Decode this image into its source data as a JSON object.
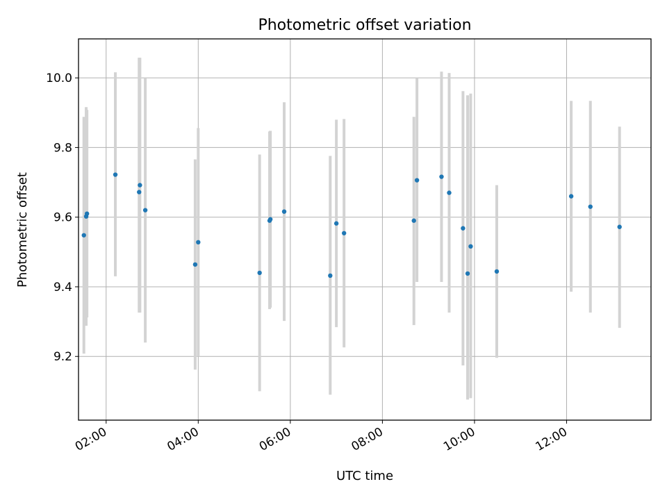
{
  "chart_data": {
    "type": "scatter",
    "title": "Photometric offset variation",
    "xlabel": "UTC time",
    "ylabel": "Photometric offset",
    "xlim": [
      "01:24",
      "13:50"
    ],
    "ylim": [
      9.017,
      10.112
    ],
    "x_ticks": [
      "02:00",
      "04:00",
      "06:00",
      "08:00",
      "10:00",
      "12:00"
    ],
    "y_ticks": [
      9.2,
      9.4,
      9.6,
      9.8,
      10.0
    ],
    "y_tick_labels": [
      "9.2",
      "9.4",
      "9.6",
      "9.8",
      "10.0"
    ],
    "grid": true,
    "colors": {
      "points": "#1f77b4",
      "error_bars": "#d3d3d3",
      "grid": "#b0b0b0"
    },
    "series": [
      {
        "points": [
          {
            "x": "01:31",
            "y": 9.548,
            "err_low": 9.208,
            "err_high": 9.888
          },
          {
            "x": "01:34",
            "y": 9.602,
            "err_low": 9.288,
            "err_high": 9.916
          },
          {
            "x": "01:35",
            "y": 9.61,
            "err_low": 9.312,
            "err_high": 9.908
          },
          {
            "x": "02:12",
            "y": 9.722,
            "err_low": 9.43,
            "err_high": 10.016
          },
          {
            "x": "02:43",
            "y": 9.672,
            "err_low": 9.326,
            "err_high": 10.058
          },
          {
            "x": "02:44",
            "y": 9.692,
            "err_low": 9.326,
            "err_high": 10.058
          },
          {
            "x": "02:51",
            "y": 9.62,
            "err_low": 9.24,
            "err_high": 10.0
          },
          {
            "x": "03:56",
            "y": 9.464,
            "err_low": 9.162,
            "err_high": 9.766
          },
          {
            "x": "04:00",
            "y": 9.528,
            "err_low": 9.2,
            "err_high": 9.856
          },
          {
            "x": "05:20",
            "y": 9.44,
            "err_low": 9.1,
            "err_high": 9.78
          },
          {
            "x": "05:33",
            "y": 9.59,
            "err_low": 9.336,
            "err_high": 9.846
          },
          {
            "x": "05:34",
            "y": 9.594,
            "err_low": 9.34,
            "err_high": 9.848
          },
          {
            "x": "05:52",
            "y": 9.616,
            "err_low": 9.302,
            "err_high": 9.93
          },
          {
            "x": "06:52",
            "y": 9.432,
            "err_low": 9.09,
            "err_high": 9.776
          },
          {
            "x": "07:00",
            "y": 9.582,
            "err_low": 9.284,
            "err_high": 9.88
          },
          {
            "x": "07:10",
            "y": 9.554,
            "err_low": 9.226,
            "err_high": 9.882
          },
          {
            "x": "08:41",
            "y": 9.59,
            "err_low": 9.29,
            "err_high": 9.888
          },
          {
            "x": "08:45",
            "y": 9.706,
            "err_low": 9.414,
            "err_high": 10.0
          },
          {
            "x": "09:17",
            "y": 9.716,
            "err_low": 9.414,
            "err_high": 10.018
          },
          {
            "x": "09:27",
            "y": 9.67,
            "err_low": 9.326,
            "err_high": 10.014
          },
          {
            "x": "09:45",
            "y": 9.568,
            "err_low": 9.174,
            "err_high": 9.962
          },
          {
            "x": "09:51",
            "y": 9.438,
            "err_low": 9.076,
            "err_high": 9.95
          },
          {
            "x": "09:55",
            "y": 9.516,
            "err_low": 9.08,
            "err_high": 9.955
          },
          {
            "x": "10:29",
            "y": 9.444,
            "err_low": 9.196,
            "err_high": 9.692
          },
          {
            "x": "12:06",
            "y": 9.66,
            "err_low": 9.386,
            "err_high": 9.934
          },
          {
            "x": "12:31",
            "y": 9.63,
            "err_low": 9.326,
            "err_high": 9.934
          },
          {
            "x": "13:09",
            "y": 9.572,
            "err_low": 9.282,
            "err_high": 9.86
          }
        ]
      }
    ]
  }
}
